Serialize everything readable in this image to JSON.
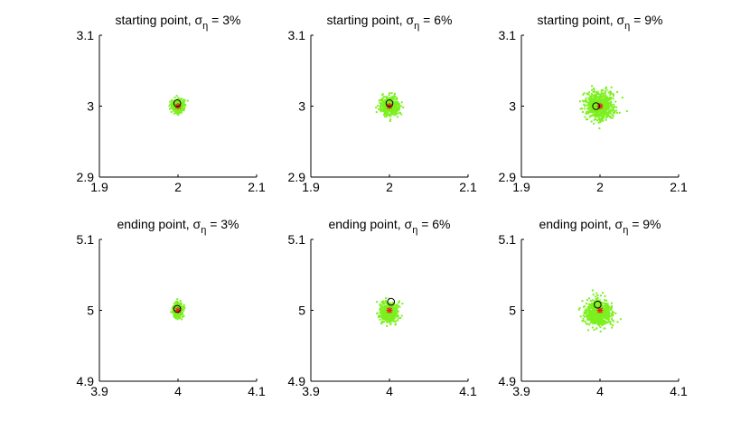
{
  "chart_data": [
    {
      "type": "scatter",
      "title": {
        "main": "starting point, ",
        "sym": "σ",
        "sub": "η",
        "tail": " = 3%"
      },
      "xlim": [
        1.9,
        2.1
      ],
      "ylim": [
        2.9,
        3.1
      ],
      "xticks": [
        "1.9",
        "2",
        "2.1"
      ],
      "yticks": [
        "2.9",
        "3",
        "3.1"
      ],
      "xtick_values": [
        1.9,
        2.0,
        2.1
      ],
      "ytick_values": [
        2.9,
        3.0,
        3.1
      ],
      "cloud": {
        "center": [
          2.0,
          3.0
        ],
        "spread": [
          0.004,
          0.0045
        ],
        "count": 350
      },
      "true_point": [
        2.0,
        3.0
      ],
      "estimate_point": [
        1.999,
        3.004
      ]
    },
    {
      "type": "scatter",
      "title": {
        "main": "starting point, ",
        "sym": "σ",
        "sub": "η",
        "tail": " = 6%"
      },
      "xlim": [
        1.9,
        2.1
      ],
      "ylim": [
        2.9,
        3.1
      ],
      "xticks": [
        "1.9",
        "2",
        "2.1"
      ],
      "yticks": [
        "2.9",
        "3",
        "3.1"
      ],
      "xtick_values": [
        1.9,
        2.0,
        2.1
      ],
      "ytick_values": [
        2.9,
        3.0,
        3.1
      ],
      "cloud": {
        "center": [
          2.0,
          3.0
        ],
        "spread": [
          0.006,
          0.0065
        ],
        "count": 500
      },
      "true_point": [
        2.0,
        3.0
      ],
      "estimate_point": [
        2.0,
        3.004
      ]
    },
    {
      "type": "scatter",
      "title": {
        "main": "starting point, ",
        "sym": "σ",
        "sub": "η",
        "tail": " = 9%"
      },
      "xlim": [
        1.9,
        2.1
      ],
      "ylim": [
        2.9,
        3.1
      ],
      "xticks": [
        "1.9",
        "2",
        "2.1"
      ],
      "yticks": [
        "2.9",
        "3",
        "3.1"
      ],
      "xtick_values": [
        1.9,
        2.0,
        2.1
      ],
      "ytick_values": [
        2.9,
        3.0,
        3.1
      ],
      "cloud": {
        "center": [
          2.0,
          3.0
        ],
        "spread": [
          0.009,
          0.01
        ],
        "count": 700
      },
      "true_point": [
        2.0,
        3.0
      ],
      "estimate_point": [
        1.995,
        3.0
      ]
    },
    {
      "type": "scatter",
      "title": {
        "main": "ending point, ",
        "sym": "σ",
        "sub": "η",
        "tail": " = 3%"
      },
      "xlim": [
        3.9,
        4.1
      ],
      "ylim": [
        4.9,
        5.1
      ],
      "xticks": [
        "3.9",
        "4",
        "4.1"
      ],
      "yticks": [
        "4.9",
        "5",
        "5.1"
      ],
      "xtick_values": [
        3.9,
        4.0,
        4.1
      ],
      "ytick_values": [
        4.9,
        5.0,
        5.1
      ],
      "cloud": {
        "center": [
          4.0,
          5.0
        ],
        "spread": [
          0.003,
          0.005
        ],
        "count": 350
      },
      "true_point": [
        4.0,
        5.0
      ],
      "estimate_point": [
        3.999,
        5.002
      ]
    },
    {
      "type": "scatter",
      "title": {
        "main": "ending point, ",
        "sym": "σ",
        "sub": "η",
        "tail": " = 6%"
      },
      "xlim": [
        3.9,
        4.1
      ],
      "ylim": [
        4.9,
        5.1
      ],
      "xticks": [
        "3.9",
        "4",
        "4.1"
      ],
      "yticks": [
        "4.9",
        "5",
        "5.1"
      ],
      "xtick_values": [
        3.9,
        4.0,
        4.1
      ],
      "ytick_values": [
        4.9,
        5.0,
        5.1
      ],
      "cloud": {
        "center": [
          3.999,
          4.997
        ],
        "spread": [
          0.006,
          0.0065
        ],
        "count": 500
      },
      "true_point": [
        4.0,
        5.0
      ],
      "estimate_point": [
        4.002,
        5.012
      ]
    },
    {
      "type": "scatter",
      "title": {
        "main": "ending point, ",
        "sym": "σ",
        "sub": "η",
        "tail": " = 9%"
      },
      "xlim": [
        3.9,
        4.1
      ],
      "ylim": [
        4.9,
        5.1
      ],
      "xticks": [
        "3.9",
        "4",
        "4.1"
      ],
      "yticks": [
        "4.9",
        "5",
        "5.1"
      ],
      "xtick_values": [
        3.9,
        4.0,
        4.1
      ],
      "ytick_values": [
        4.9,
        5.0,
        5.1
      ],
      "cloud": {
        "center": [
          3.998,
          4.996
        ],
        "spread": [
          0.008,
          0.009
        ],
        "count": 650
      },
      "true_point": [
        4.0,
        5.0
      ],
      "estimate_point": [
        3.997,
        5.008
      ]
    }
  ],
  "colors": {
    "cloud": "#7cf01e",
    "true_point": "#e8241c",
    "estimate_point": "#000000",
    "axis": "#000000"
  }
}
